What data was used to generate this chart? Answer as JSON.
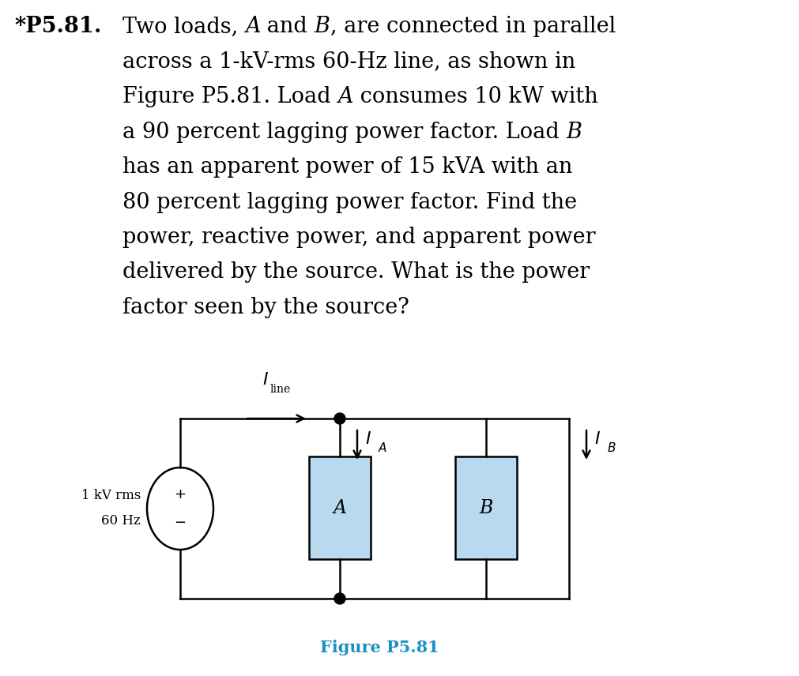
{
  "background_color": "#ffffff",
  "title_bold": "*P5.81.",
  "text_color": "#000000",
  "figure_label": "Figure P5.81",
  "figure_label_color": "#1B8FC4",
  "source_label_line1": "1 kV rms",
  "source_label_line2": "60 Hz",
  "load_A_label": "A",
  "load_B_label": "B",
  "load_fill_color": "#B8D9F0",
  "load_edge_color": "#000000",
  "wire_color": "#000000",
  "plus_minus_color": "#000000",
  "text_lines": [
    [
      "Two loads, ",
      "A",
      " and ",
      "B",
      ", are connected in parallel"
    ],
    [
      "across a 1-kV-rms 60-Hz line, as shown in"
    ],
    [
      "Figure P5.81. Load ",
      "A",
      " consumes 10 kW with"
    ],
    [
      "a 90 percent lagging power factor. Load ",
      "B"
    ],
    [
      "has an apparent power of 15 kVA with an"
    ],
    [
      "80 percent lagging power factor. Find the"
    ],
    [
      "power, reactive power, and apparent power"
    ],
    [
      "delivered by the source. What is the power"
    ],
    [
      "factor seen by the source?"
    ]
  ]
}
